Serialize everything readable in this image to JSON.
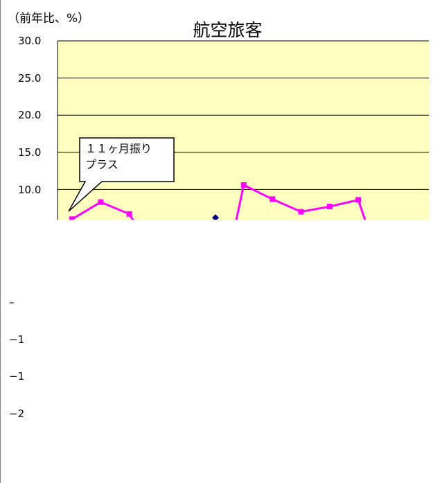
{
  "chart_data": {
    "type": "line",
    "title": "航空旅客",
    "unit_label": "（前年比、%）",
    "ylim": [
      0,
      30
    ],
    "grid": true,
    "plot_background": "#FFFFC0",
    "y_tick_labels": [
      "30.0",
      "25.0",
      "20.0",
      "15.0",
      "10.0",
      "–",
      "−1",
      "−1",
      "−2"
    ],
    "x": [
      1,
      2,
      3,
      4,
      5,
      6,
      7,
      8,
      9,
      10,
      11,
      12
    ],
    "series": [
      {
        "color": "#FF00FF",
        "marker": "square",
        "values": [
          6.0,
          8.3,
          6.7,
          null,
          null,
          null,
          10.6,
          8.7,
          7.0,
          7.7,
          8.6,
          null
        ]
      },
      {
        "color": "#000080",
        "marker": "diamond",
        "values": [
          null,
          null,
          null,
          null,
          null,
          6.2,
          null,
          null,
          null,
          null,
          null,
          null
        ]
      }
    ],
    "annotations": [
      {
        "text_line1": "１１ヶ月振り",
        "text_line2": "プラス"
      }
    ]
  }
}
